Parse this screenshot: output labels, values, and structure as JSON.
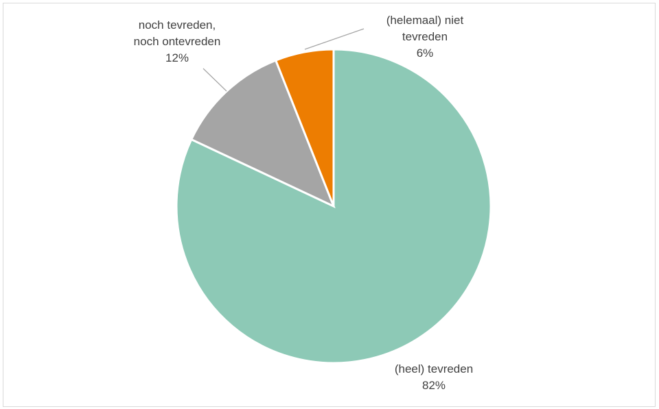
{
  "chart_data": {
    "type": "pie",
    "title": "",
    "start_angle_deg": 0,
    "direction": "clockwise",
    "slices": [
      {
        "label": [
          "(heel) tevreden"
        ],
        "value": 82,
        "value_label": "82%",
        "color": "#8dc9b6"
      },
      {
        "label": [
          "noch tevreden,",
          "noch ontevreden"
        ],
        "value": 12,
        "value_label": "12%",
        "color": "#a5a5a5"
      },
      {
        "label": [
          "(helemaal) niet",
          "tevreden"
        ],
        "value": 6,
        "value_label": "6%",
        "color": "#ed7d01"
      }
    ],
    "legend": "none",
    "data_labels": "outside-with-leader-lines"
  }
}
